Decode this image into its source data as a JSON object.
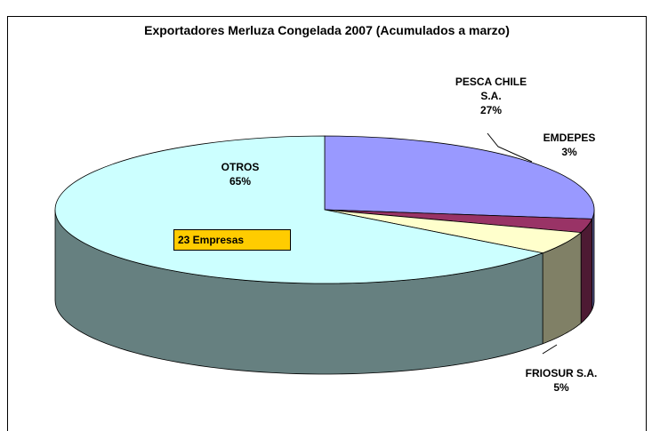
{
  "chart_data": {
    "type": "pie",
    "title": "Exportadores Merluza Congelada 2007 (Acumulados a marzo)",
    "categories": [
      "PESCA CHILE S.A.",
      "EMDEPES",
      "FRIOSUR S.A.",
      "OTROS"
    ],
    "values": [
      27,
      3,
      5,
      65
    ],
    "value_labels": [
      "27%",
      "3%",
      "5%",
      "65%"
    ],
    "colors": [
      "#9999ff",
      "#993366",
      "#ffffcc",
      "#ccffff"
    ],
    "annotation": "23 Empresas"
  }
}
